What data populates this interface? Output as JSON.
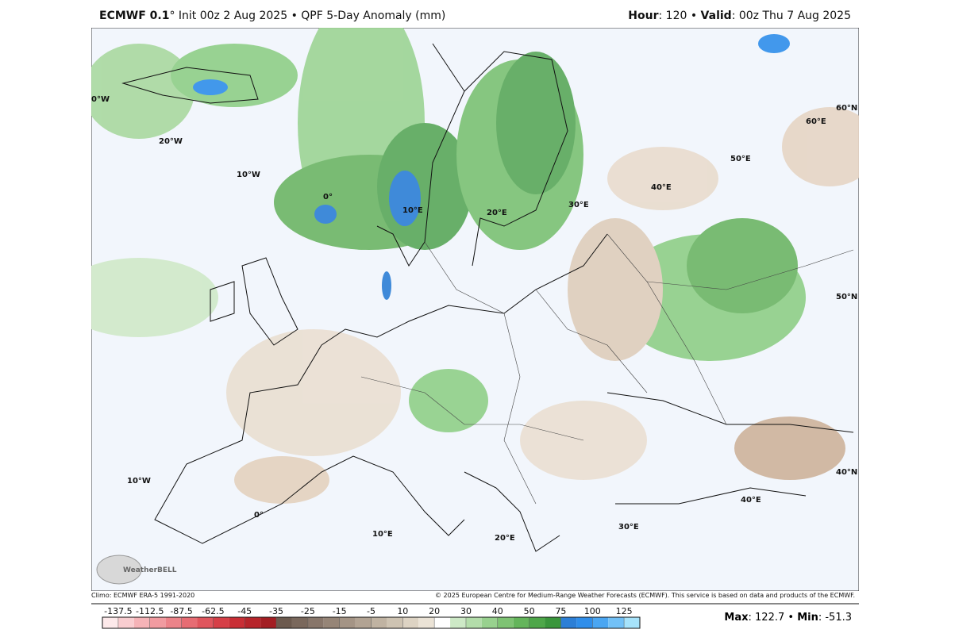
{
  "header": {
    "left_bold": "ECMWF 0.1",
    "left_rest": "° Init 00z 2 Aug 2025 • QPF 5-Day Anomaly (mm)",
    "hour_label": "Hour",
    "hour_value": ": 120 • ",
    "valid_label": "Valid",
    "valid_value": ": 00z Thu 7 Aug 2025"
  },
  "map": {
    "grid_labels": [
      "0°W",
      "20°W",
      "10°W",
      "0°",
      "10°E",
      "20°E",
      "30°E",
      "40°E",
      "50°E",
      "60°E",
      "60°N",
      "50°N",
      "40°N",
      "40°E",
      "30°E",
      "20°E",
      "10°E",
      "0°",
      "10°W"
    ],
    "logo": "WeatherBELL"
  },
  "footer": {
    "climo": "Climo: ECMWF ERA-5 1991-2020",
    "copyright": "© 2025 European Centre for Medium-Range Weather Forecasts (ECMWF). This service is based on data and products of the ECMWF.",
    "max_label": "Max",
    "max_value": 122.7,
    "min_label": "Min",
    "min_value": -51.3
  },
  "colorbar": {
    "ticks": [
      -137.5,
      -112.5,
      -87.5,
      -62.5,
      -45,
      -35,
      -25,
      -15,
      -5,
      10,
      20,
      30,
      40,
      50,
      75,
      100,
      125
    ],
    "colors": [
      "#fde9ea",
      "#f9cdd0",
      "#f5b3b7",
      "#f19ba0",
      "#ec8389",
      "#e76c73",
      "#e0555d",
      "#d63f47",
      "#c92e35",
      "#b7242a",
      "#a31e23",
      "#6c5a4e",
      "#7a685c",
      "#88766a",
      "#968577",
      "#a49485",
      "#b2a393",
      "#c0b3a2",
      "#cec3b2",
      "#ddd3c3",
      "#ebe3d6",
      "#ffffff",
      "#cde9c6",
      "#b3ddaa",
      "#98d18e",
      "#7ec373",
      "#64b55b",
      "#4ea749",
      "#3a963c",
      "#2c7fd6",
      "#2f8eea",
      "#4aa6f2",
      "#72c1f7",
      "#a6e3fb"
    ]
  }
}
